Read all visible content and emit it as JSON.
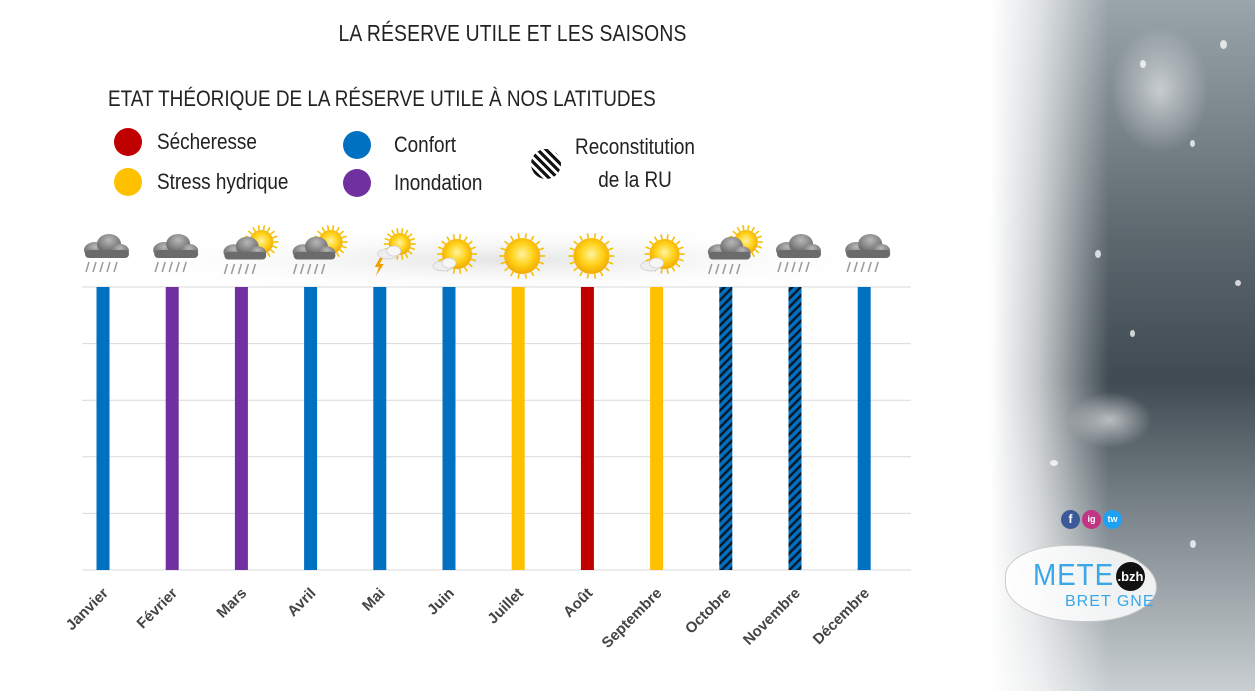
{
  "title": "LA RÉSERVE UTILE ET LES SAISONS",
  "subtitle": "ETAT THÉORIQUE DE LA RÉSERVE UTILE À NOS LATITUDES",
  "legend": [
    {
      "label": "Sécheresse",
      "color": "#c00000"
    },
    {
      "label": "Stress hydrique",
      "color": "#ffc000"
    },
    {
      "label": "Confort",
      "color": "#0070c0"
    },
    {
      "label": "Inondation",
      "color": "#7030a0"
    }
  ],
  "legend_reconstitution": {
    "line1": "Reconstitution",
    "line2": "de la RU"
  },
  "colors": {
    "secheresse": "#c00000",
    "stress": "#ffc000",
    "confort": "#0070c0",
    "inondation": "#7030a0",
    "reconstitution": "#0070c0"
  },
  "chart_data": {
    "type": "bar",
    "title": "LA RÉSERVE UTILE ET LES SAISONS",
    "subtitle": "ETAT THÉORIQUE DE LA RÉSERVE UTILE À NOS LATITUDES",
    "categories": [
      "Janvier",
      "Février",
      "Mars",
      "Avril",
      "Mai",
      "Juin",
      "Juillet",
      "Août",
      "Septembre",
      "Octobre",
      "Novembre",
      "Décembre"
    ],
    "values": [
      1,
      1,
      1,
      1,
      1,
      1,
      1,
      1,
      1,
      1,
      1,
      1
    ],
    "states": [
      "confort",
      "inondation",
      "inondation",
      "confort",
      "confort",
      "confort",
      "stress",
      "secheresse",
      "stress",
      "reconstitution",
      "reconstitution",
      "confort"
    ],
    "weather_icons": [
      "rain-cloud-icon",
      "rain-cloud-icon",
      "sun-rain-cloud-icon",
      "sun-rain-cloud-icon",
      "sun-storm-cloud-icon",
      "sun-cloud-icon",
      "sun-icon",
      "sun-icon",
      "sun-cloud-icon",
      "sun-rain-cloud-icon",
      "rain-cloud-icon",
      "rain-cloud-icon"
    ],
    "ylim": [
      0,
      1
    ],
    "grid": true,
    "legend_position": "top-left"
  },
  "social": [
    "f",
    "ig",
    "tw"
  ],
  "logo": {
    "mete": "METE",
    "bzh": ".bzh",
    "bretagne": "BRET GNE"
  }
}
